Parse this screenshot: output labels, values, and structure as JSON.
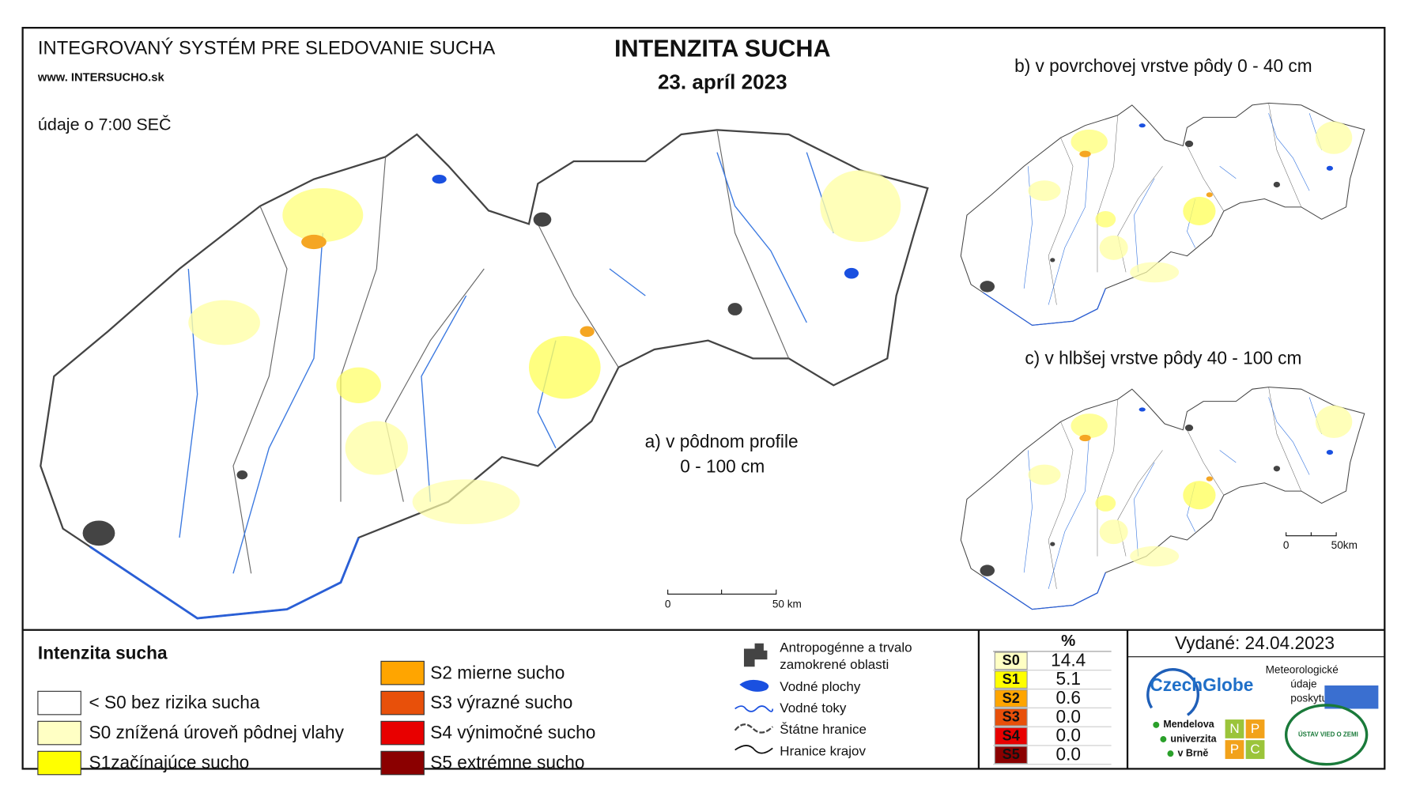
{
  "header": {
    "system": "INTEGROVANÝ SYSTÉM PRE SLEDOVANIE SUCHA",
    "url": "www. INTERSUCHO.sk",
    "title": "INTENZITA SUCHA",
    "date": "23. apríl 2023",
    "time_note": "údaje o 7:00 SEČ"
  },
  "maps": {
    "a": {
      "label_1": "a) v pôdnom profile",
      "label_2": "0 - 100 cm",
      "scale_start": "0",
      "scale_end": "50 km"
    },
    "b": {
      "label": "b) v povrchovej vrstve pôdy 0 - 40 cm"
    },
    "c": {
      "label": "c) v hlbšej vrstve pôdy 40 - 100 cm",
      "scale_start": "0",
      "scale_end": "50km"
    }
  },
  "legend": {
    "title": "Intenzita sucha",
    "items": [
      {
        "label": "< S0 bez rizika sucha",
        "color": "#ffffff"
      },
      {
        "label": "S0 znížená úroveň pôdnej vlahy",
        "color": "#ffffc4"
      },
      {
        "label": "S1začínajúce sucho",
        "color": "#ffff00"
      },
      {
        "label": "S2 mierne sucho",
        "color": "#ffa500"
      },
      {
        "label": "S3 výrazné sucho",
        "color": "#e8500a"
      },
      {
        "label": "S4 výnimočné sucho",
        "color": "#e80000"
      },
      {
        "label": "S5 extrémne sucho",
        "color": "#8b0000"
      }
    ]
  },
  "symbols": [
    "Antropogénne a trvalo zamokrené oblasti",
    "Vodné plochy",
    "Vodné toky",
    "Štátne hranice",
    "Hranice krajov"
  ],
  "stats": {
    "header": "%",
    "rows": [
      {
        "class": "S0",
        "value": "14.4",
        "color": "#ffffc4"
      },
      {
        "class": "S1",
        "value": "5.1",
        "color": "#ffff00"
      },
      {
        "class": "S2",
        "value": "0.6",
        "color": "#ffa500"
      },
      {
        "class": "S3",
        "value": "0.0",
        "color": "#e8500a"
      },
      {
        "class": "S4",
        "value": "0.0",
        "color": "#e80000"
      },
      {
        "class": "S5",
        "value": "0.0",
        "color": "#8b0000"
      }
    ]
  },
  "issued": "Vydané: 24.04.2023",
  "logos": {
    "czechglobe": "CzechGlobe",
    "shmu_note": [
      "Meteorologické",
      "údaje",
      "poskytuje:"
    ],
    "mendel": [
      "Mendelova",
      "univerzita",
      "v Brně"
    ],
    "npc": [
      "N",
      "P",
      "P",
      "C"
    ],
    "uvz": "ÚSTAV VIED O ZEMI"
  }
}
